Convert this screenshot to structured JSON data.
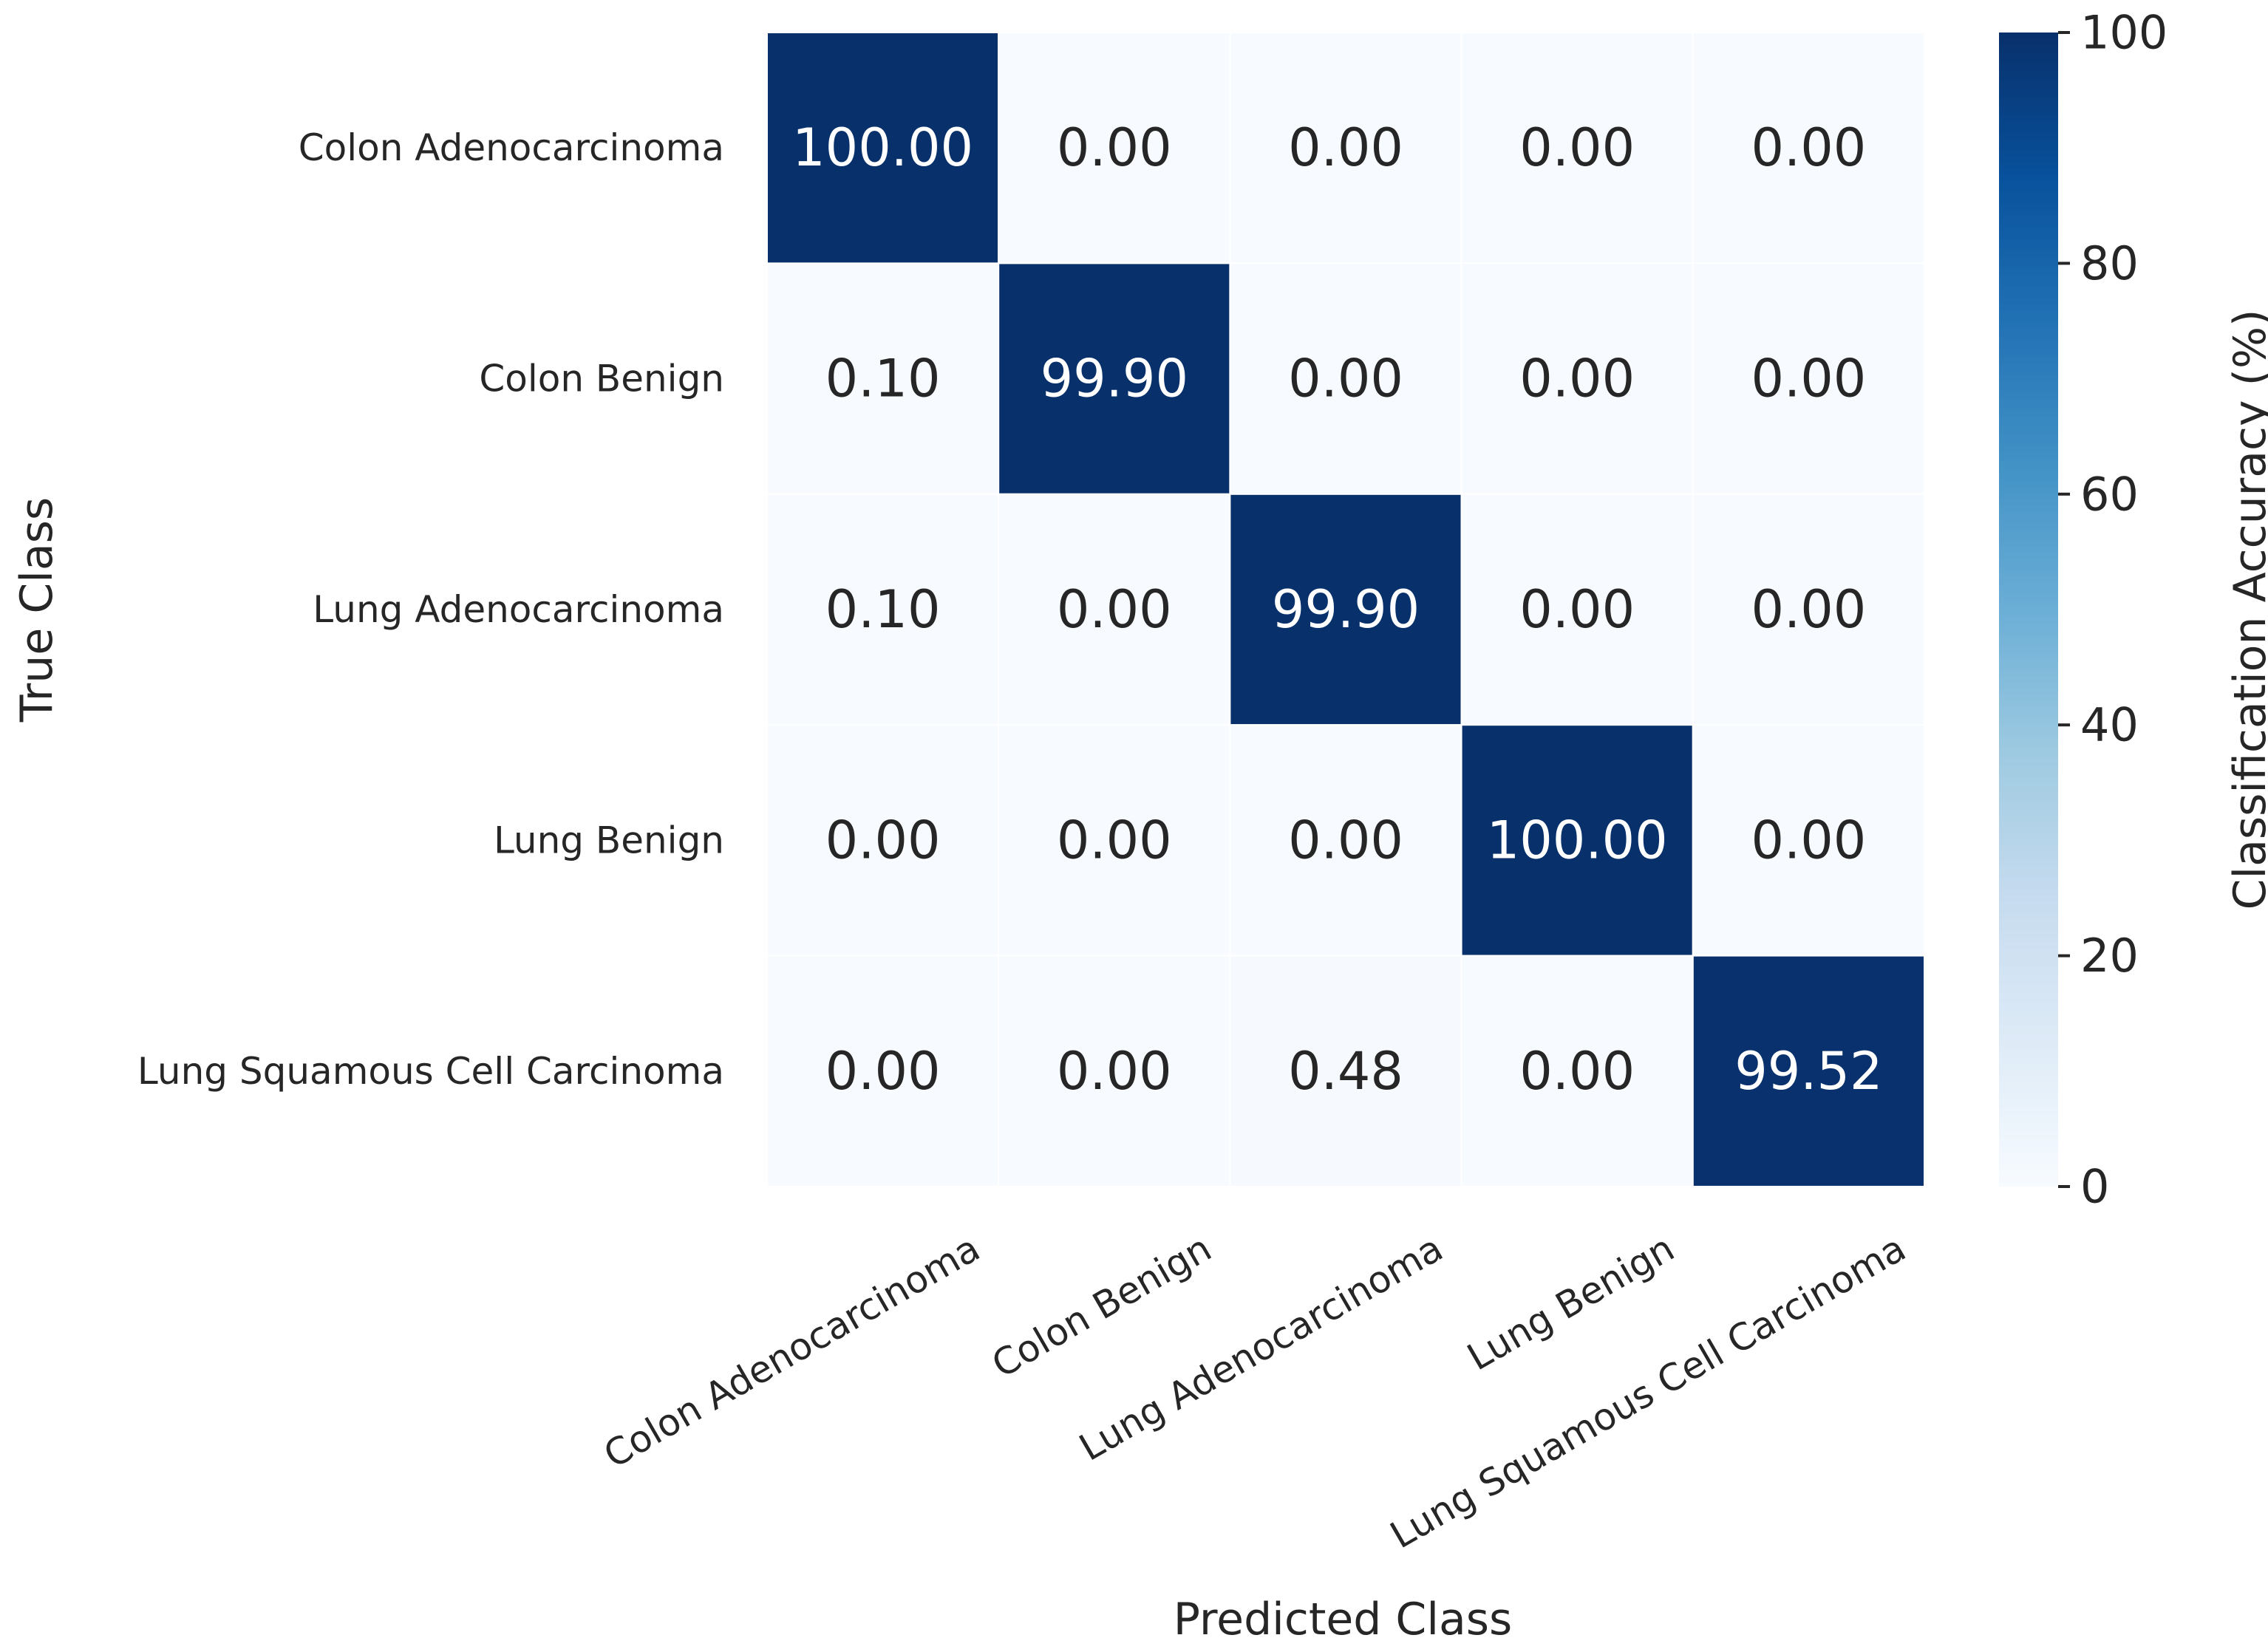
{
  "chart_data": {
    "type": "heatmap",
    "title": "",
    "xlabel": "Predicted Class",
    "ylabel": "True Class",
    "rows": [
      "Colon Adenocarcinoma",
      "Colon Benign",
      "Lung Adenocarcinoma",
      "Lung Benign",
      "Lung Squamous Cell Carcinoma"
    ],
    "columns": [
      "Colon Adenocarcinoma",
      "Colon Benign",
      "Lung Adenocarcinoma",
      "Lung Benign",
      "Lung Squamous Cell Carcinoma"
    ],
    "values": [
      [
        100.0,
        0.0,
        0.0,
        0.0,
        0.0
      ],
      [
        0.1,
        99.9,
        0.0,
        0.0,
        0.0
      ],
      [
        0.1,
        0.0,
        99.9,
        0.0,
        0.0
      ],
      [
        0.0,
        0.0,
        0.0,
        100.0,
        0.0
      ],
      [
        0.0,
        0.0,
        0.48,
        0.0,
        99.52
      ]
    ],
    "value_format": "0.00",
    "colorbar": {
      "label": "Classification Accuracy (%)",
      "range": [
        0,
        100
      ],
      "ticks": [
        0,
        20,
        40,
        60,
        80,
        100
      ]
    },
    "colormap": "Blues",
    "colors": {
      "low": "#f7fbff",
      "high": "#08306b",
      "text_dark": "#262626",
      "text_light": "#ffffff"
    }
  }
}
